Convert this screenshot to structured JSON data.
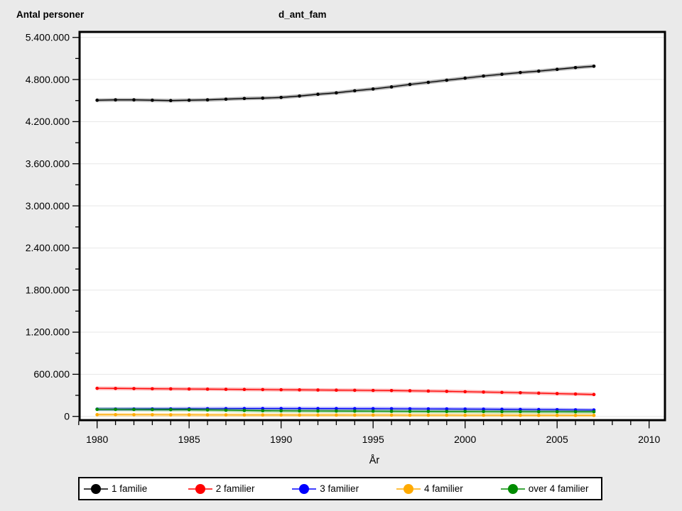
{
  "titles": {
    "y_axis_title": "Antal personer",
    "plot_title": "d_ant_fam",
    "x_axis_title": "År"
  },
  "colors": {
    "background": "#eaeaea",
    "plot_background": "#ffffff",
    "grid": "#e7e7e7",
    "frame": "#000000",
    "tick": "#000000",
    "text": "#000000",
    "legend_background": "#ffffff",
    "legend_border": "#000000"
  },
  "chart_data": {
    "type": "line",
    "title": "d_ant_fam",
    "xlabel": "År",
    "ylabel": "Antal personer",
    "x": [
      1980,
      1981,
      1982,
      1983,
      1984,
      1985,
      1986,
      1987,
      1988,
      1989,
      1990,
      1991,
      1992,
      1993,
      1994,
      1995,
      1996,
      1997,
      1998,
      1999,
      2000,
      2001,
      2002,
      2003,
      2004,
      2005,
      2006,
      2007
    ],
    "series": [
      {
        "name": "1 familie",
        "color": "#000000",
        "values": [
          4505000,
          4510000,
          4510000,
          4505000,
          4500000,
          4505000,
          4510000,
          4520000,
          4530000,
          4535000,
          4545000,
          4565000,
          4590000,
          4610000,
          4640000,
          4665000,
          4695000,
          4730000,
          4760000,
          4790000,
          4820000,
          4850000,
          4875000,
          4900000,
          4920000,
          4945000,
          4970000,
          4990000
        ]
      },
      {
        "name": "2 familier",
        "color": "#ff0000",
        "values": [
          400000,
          398000,
          396000,
          394000,
          392000,
          390000,
          388000,
          386000,
          384000,
          382000,
          380000,
          378000,
          376000,
          374000,
          372000,
          370000,
          368000,
          365000,
          361000,
          357000,
          352000,
          347000,
          342000,
          337000,
          331000,
          325000,
          319000,
          312000
        ]
      },
      {
        "name": "3 familier",
        "color": "#0000ff",
        "values": [
          103000,
          104000,
          105000,
          106000,
          107000,
          108000,
          109000,
          110000,
          111000,
          112000,
          112000,
          112000,
          111000,
          111000,
          110000,
          110000,
          109000,
          108000,
          107000,
          106000,
          104000,
          103000,
          101000,
          99000,
          97000,
          95000,
          93000,
          91000
        ]
      },
      {
        "name": "4 familier",
        "color": "#ffaa00",
        "values": [
          24000,
          24000,
          23000,
          23000,
          22000,
          22000,
          21000,
          21000,
          20000,
          20000,
          20000,
          19000,
          19000,
          19000,
          18000,
          18000,
          18000,
          17000,
          17000,
          17000,
          16000,
          16000,
          16000,
          15000,
          15000,
          15000,
          14000,
          14000
        ]
      },
      {
        "name": "over 4 familier",
        "color": "#008c00",
        "values": [
          100000,
          99000,
          98000,
          97000,
          96000,
          95000,
          92000,
          88000,
          84000,
          81000,
          79000,
          78000,
          77000,
          76000,
          75000,
          74000,
          73000,
          72000,
          71000,
          70000,
          70000,
          69000,
          68000,
          68000,
          67000,
          67000,
          66000,
          66000
        ]
      }
    ],
    "xlim": [
      1979.05,
      2010.8
    ],
    "ylim": [
      -54000,
      5478000
    ],
    "x_major_ticks": [
      1980,
      1985,
      1990,
      1995,
      2000,
      2005,
      2010
    ],
    "x_minor_tick_range": [
      1979,
      2010
    ],
    "x_minor_step": 1,
    "y_major_ticks": [
      0,
      600000,
      1200000,
      1800000,
      2400000,
      3000000,
      3600000,
      4200000,
      4800000,
      5400000
    ],
    "y_tick_labels": [
      "0",
      "600.000",
      "1.200.000",
      "1.800.000",
      "2.400.000",
      "3.000.000",
      "3.600.000",
      "4.200.000",
      "4.800.000",
      "5.400.000"
    ],
    "y_minor_offset": 300000,
    "grid": "horizontal-major",
    "legend_position": "bottom"
  }
}
